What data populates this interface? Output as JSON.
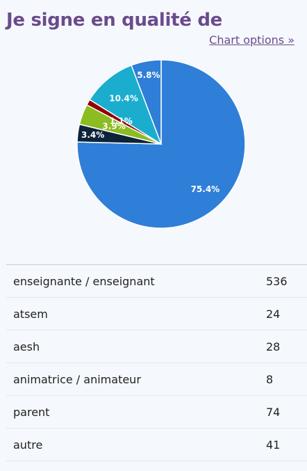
{
  "header": {
    "title": "Je signe en qualité de",
    "options_link": "Chart options »"
  },
  "chart_data": {
    "type": "pie",
    "slices": [
      {
        "label": "enseignante / enseignant",
        "value": 536,
        "percent_label": "75.4%",
        "color": "#2f7ed8"
      },
      {
        "label": "atsem",
        "value": 24,
        "percent_label": "3.4%",
        "color": "#0d233a"
      },
      {
        "label": "aesh",
        "value": 28,
        "percent_label": "3.9%",
        "color": "#8bbc21"
      },
      {
        "label": "animatrice / animateur",
        "value": 8,
        "percent_label": "1.1%",
        "color": "#910000"
      },
      {
        "label": "parent",
        "value": 74,
        "percent_label": "10.4%",
        "color": "#1aadce"
      },
      {
        "label": "autre",
        "value": 41,
        "percent_label": "5.8%",
        "color": "#2f7ed8"
      }
    ]
  },
  "table": {
    "rows": [
      {
        "label": "enseignante / enseignant",
        "count": "536"
      },
      {
        "label": "atsem",
        "count": "24"
      },
      {
        "label": "aesh",
        "count": "28"
      },
      {
        "label": "animatrice / animateur",
        "count": "8"
      },
      {
        "label": "parent",
        "count": "74"
      },
      {
        "label": "autre",
        "count": "41"
      }
    ]
  }
}
